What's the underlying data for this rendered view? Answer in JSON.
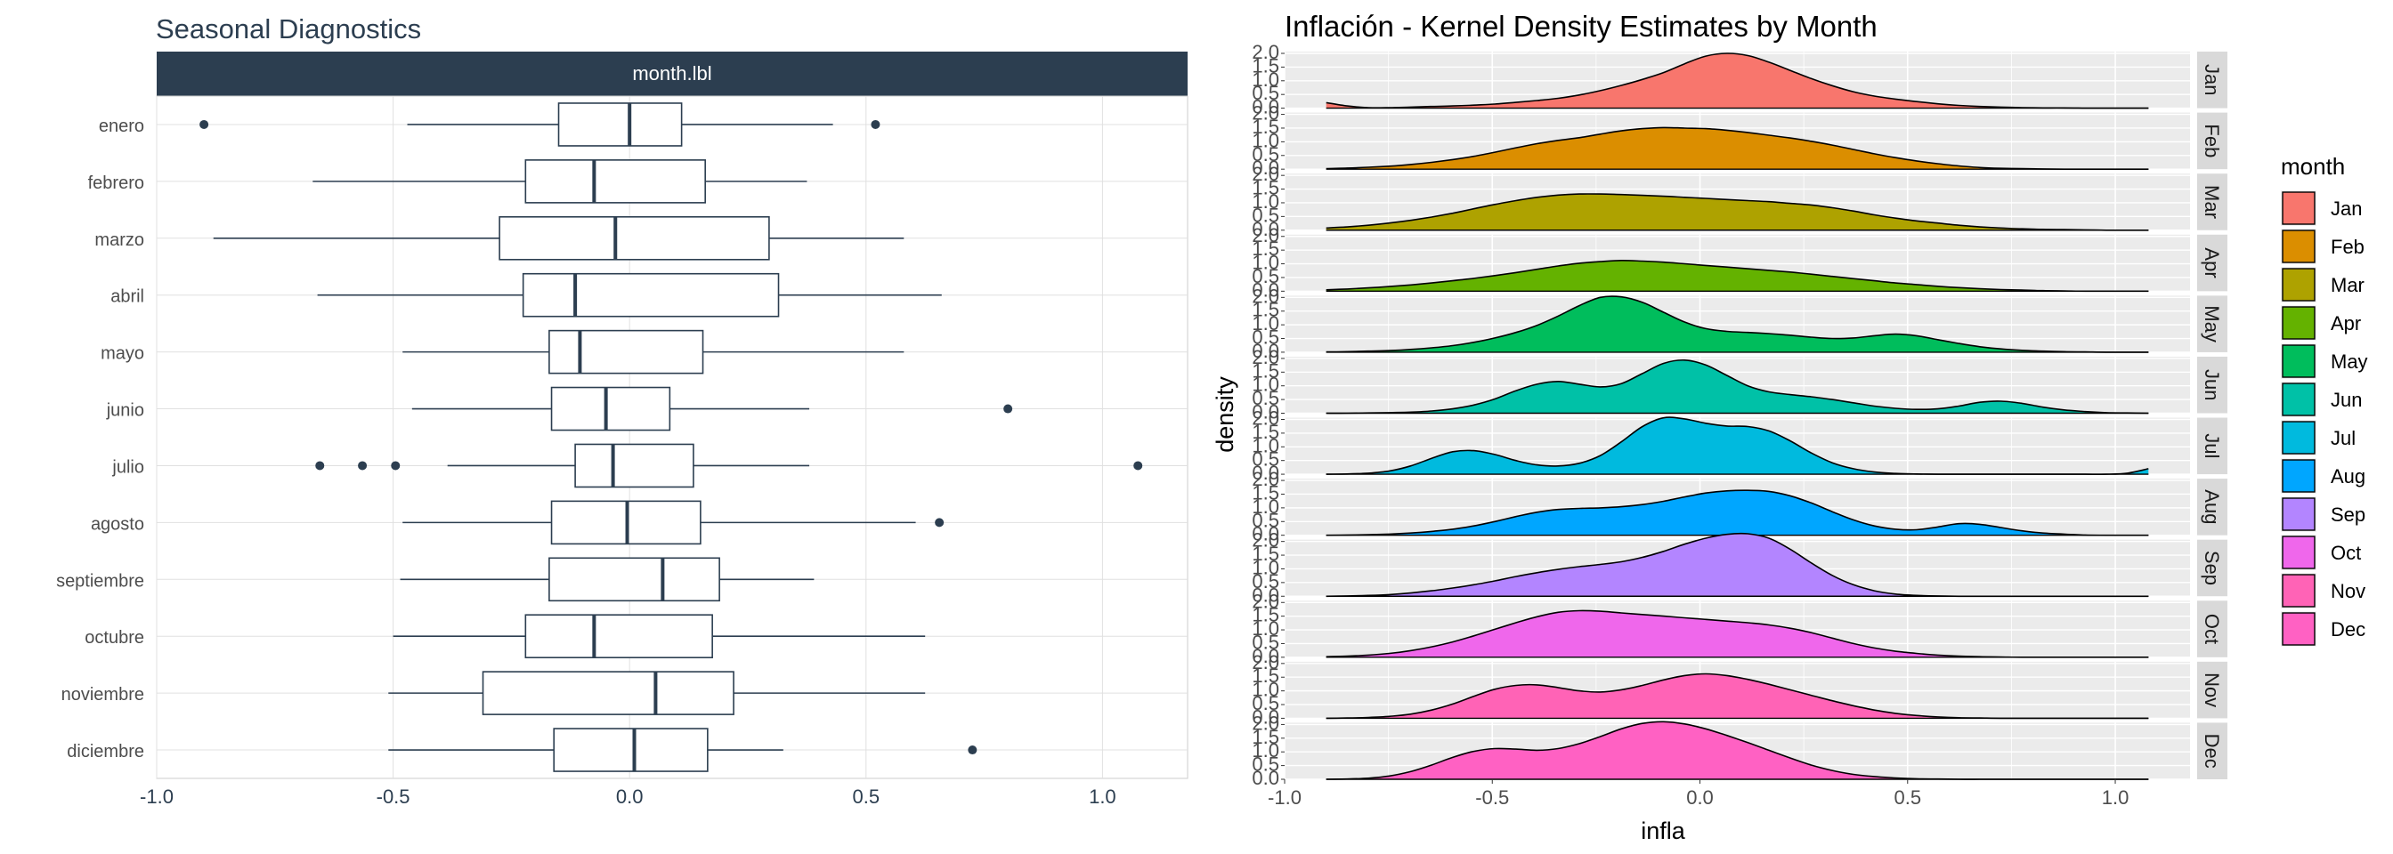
{
  "chart_data": [
    {
      "type": "boxplot",
      "title": "Seasonal Diagnostics",
      "facet_label": "month.lbl",
      "xlim": [
        -1.0,
        1.18
      ],
      "x_ticks": [
        -1.0,
        -0.5,
        0.0,
        0.5,
        1.0
      ],
      "x_tick_labels": [
        "-1.0",
        "-0.5",
        "0.0",
        "0.5",
        "1.0"
      ],
      "grid": true,
      "color": "#2c3e50",
      "categories": [
        "enero",
        "febrero",
        "marzo",
        "abril",
        "mayo",
        "junio",
        "julio",
        "agosto",
        "septiembre",
        "octubre",
        "noviembre",
        "diciembre"
      ],
      "boxes": [
        {
          "min": -0.47,
          "q1": -0.15,
          "median": 0.0,
          "q3": 0.11,
          "max": 0.43,
          "outliers": [
            -0.9,
            0.52
          ]
        },
        {
          "min": -0.67,
          "q1": -0.22,
          "median": -0.075,
          "q3": 0.16,
          "max": 0.375,
          "outliers": []
        },
        {
          "min": -0.88,
          "q1": -0.275,
          "median": -0.03,
          "q3": 0.295,
          "max": 0.58,
          "outliers": []
        },
        {
          "min": -0.66,
          "q1": -0.225,
          "median": -0.115,
          "q3": 0.315,
          "max": 0.66,
          "outliers": []
        },
        {
          "min": -0.48,
          "q1": -0.17,
          "median": -0.105,
          "q3": 0.155,
          "max": 0.58,
          "outliers": []
        },
        {
          "min": -0.46,
          "q1": -0.165,
          "median": -0.05,
          "q3": 0.085,
          "max": 0.38,
          "outliers": [
            0.8
          ]
        },
        {
          "min": -0.385,
          "q1": -0.115,
          "median": -0.035,
          "q3": 0.135,
          "max": 0.38,
          "outliers": [
            -0.655,
            -0.565,
            -0.495,
            1.075
          ]
        },
        {
          "min": -0.48,
          "q1": -0.165,
          "median": -0.005,
          "q3": 0.15,
          "max": 0.605,
          "outliers": [
            0.655
          ]
        },
        {
          "min": -0.485,
          "q1": -0.17,
          "median": 0.07,
          "q3": 0.19,
          "max": 0.39,
          "outliers": []
        },
        {
          "min": -0.5,
          "q1": -0.22,
          "median": -0.075,
          "q3": 0.175,
          "max": 0.625,
          "outliers": []
        },
        {
          "min": -0.51,
          "q1": -0.31,
          "median": 0.055,
          "q3": 0.22,
          "max": 0.625,
          "outliers": []
        },
        {
          "min": -0.51,
          "q1": -0.16,
          "median": 0.01,
          "q3": 0.165,
          "max": 0.325,
          "outliers": [
            0.725
          ]
        }
      ]
    },
    {
      "type": "area",
      "title": "Inflación - Kernel Density Estimates by Month",
      "xlabel": "infla",
      "ylabel": "density",
      "xlim": [
        -1.0,
        1.18
      ],
      "ylim": [
        0,
        2.0
      ],
      "x_ticks": [
        -1.0,
        -0.5,
        0.0,
        0.5,
        1.0
      ],
      "x_tick_labels": [
        "-1.0",
        "-0.5",
        "0.0",
        "0.5",
        "1.0"
      ],
      "y_ticks": [
        0.0,
        0.5,
        1.0,
        1.5,
        2.0
      ],
      "y_tick_labels": [
        "0.0",
        "0.5",
        "1.0",
        "1.5",
        "2.0"
      ],
      "legend_title": "month",
      "legend_position": "right",
      "grid": true,
      "x_grid": [
        -0.9,
        -0.68,
        -0.46,
        -0.24,
        -0.02,
        0.2,
        0.42,
        0.64,
        0.86,
        1.08
      ],
      "series": [
        {
          "name": "Jan",
          "color": "#F8766D",
          "values": [
            0.2,
            0.08,
            0.02,
            0.02,
            0.04,
            0.06,
            0.08,
            0.11,
            0.15,
            0.21,
            0.28,
            0.36,
            0.48,
            0.64,
            0.83,
            1.05,
            1.3,
            1.62,
            1.9,
            2.0,
            1.92,
            1.68,
            1.38,
            1.08,
            0.82,
            0.6,
            0.44,
            0.33,
            0.24,
            0.16,
            0.1,
            0.06,
            0.04,
            0.02,
            0.01,
            0.01,
            0.0,
            0.0,
            0.0,
            0.0
          ]
        },
        {
          "name": "Feb",
          "color": "#DB8E00",
          "values": [
            0.02,
            0.04,
            0.07,
            0.11,
            0.17,
            0.25,
            0.35,
            0.47,
            0.62,
            0.78,
            0.93,
            1.05,
            1.15,
            1.28,
            1.4,
            1.48,
            1.52,
            1.5,
            1.48,
            1.42,
            1.34,
            1.24,
            1.14,
            1.02,
            0.88,
            0.72,
            0.56,
            0.42,
            0.3,
            0.2,
            0.12,
            0.06,
            0.03,
            0.02,
            0.01,
            0.0,
            0.0,
            0.0,
            0.0,
            0.0
          ]
        },
        {
          "name": "Mar",
          "color": "#AEA200",
          "values": [
            0.08,
            0.12,
            0.18,
            0.26,
            0.36,
            0.48,
            0.62,
            0.78,
            0.94,
            1.08,
            1.2,
            1.28,
            1.32,
            1.32,
            1.3,
            1.27,
            1.24,
            1.2,
            1.16,
            1.12,
            1.08,
            1.04,
            0.98,
            0.92,
            0.82,
            0.7,
            0.56,
            0.44,
            0.34,
            0.26,
            0.18,
            0.12,
            0.08,
            0.05,
            0.03,
            0.02,
            0.01,
            0.0,
            0.0,
            0.0
          ]
        },
        {
          "name": "Apr",
          "color": "#64B200",
          "values": [
            0.05,
            0.08,
            0.12,
            0.17,
            0.23,
            0.3,
            0.38,
            0.47,
            0.57,
            0.68,
            0.8,
            0.92,
            1.02,
            1.08,
            1.12,
            1.1,
            1.06,
            1.0,
            0.94,
            0.88,
            0.82,
            0.76,
            0.7,
            0.62,
            0.54,
            0.46,
            0.38,
            0.3,
            0.24,
            0.18,
            0.13,
            0.09,
            0.06,
            0.04,
            0.02,
            0.01,
            0.0,
            0.0,
            0.0,
            0.0
          ]
        },
        {
          "name": "May",
          "color": "#00BD5C",
          "values": [
            0.01,
            0.02,
            0.04,
            0.06,
            0.1,
            0.16,
            0.24,
            0.36,
            0.52,
            0.72,
            0.98,
            1.32,
            1.7,
            2.0,
            2.02,
            1.82,
            1.46,
            1.1,
            0.86,
            0.76,
            0.72,
            0.68,
            0.62,
            0.55,
            0.5,
            0.52,
            0.6,
            0.66,
            0.6,
            0.46,
            0.32,
            0.2,
            0.12,
            0.07,
            0.04,
            0.02,
            0.01,
            0.0,
            0.0,
            0.0
          ]
        },
        {
          "name": "Jun",
          "color": "#00C1A7",
          "values": [
            0.0,
            0.0,
            0.01,
            0.02,
            0.04,
            0.08,
            0.16,
            0.3,
            0.52,
            0.82,
            1.06,
            1.16,
            1.06,
            0.96,
            1.08,
            1.45,
            1.82,
            1.94,
            1.76,
            1.38,
            1.0,
            0.78,
            0.68,
            0.6,
            0.5,
            0.38,
            0.26,
            0.18,
            0.14,
            0.16,
            0.26,
            0.4,
            0.44,
            0.36,
            0.22,
            0.12,
            0.06,
            0.02,
            0.01,
            0.0
          ]
        },
        {
          "name": "Jul",
          "color": "#00BADE",
          "values": [
            0.0,
            0.01,
            0.04,
            0.12,
            0.3,
            0.58,
            0.82,
            0.86,
            0.72,
            0.5,
            0.34,
            0.3,
            0.4,
            0.68,
            1.18,
            1.74,
            2.06,
            2.02,
            1.86,
            1.76,
            1.74,
            1.58,
            1.22,
            0.78,
            0.42,
            0.2,
            0.08,
            0.03,
            0.01,
            0.0,
            0.0,
            0.0,
            0.0,
            0.0,
            0.0,
            0.0,
            0.0,
            0.0,
            0.04,
            0.2
          ]
        },
        {
          "name": "Aug",
          "color": "#00A6FF",
          "values": [
            0.0,
            0.01,
            0.02,
            0.04,
            0.08,
            0.14,
            0.22,
            0.34,
            0.5,
            0.68,
            0.84,
            0.94,
            0.98,
            1.0,
            1.04,
            1.12,
            1.24,
            1.4,
            1.54,
            1.62,
            1.64,
            1.6,
            1.44,
            1.18,
            0.86,
            0.56,
            0.34,
            0.22,
            0.2,
            0.3,
            0.42,
            0.4,
            0.28,
            0.16,
            0.08,
            0.04,
            0.01,
            0.0,
            0.0,
            0.0
          ]
        },
        {
          "name": "Sep",
          "color": "#B385FF",
          "values": [
            0.0,
            0.01,
            0.03,
            0.06,
            0.12,
            0.2,
            0.3,
            0.42,
            0.56,
            0.72,
            0.86,
            0.98,
            1.08,
            1.16,
            1.26,
            1.42,
            1.64,
            1.9,
            2.12,
            2.26,
            2.28,
            2.12,
            1.72,
            1.22,
            0.76,
            0.42,
            0.2,
            0.08,
            0.03,
            0.01,
            0.0,
            0.0,
            0.0,
            0.0,
            0.0,
            0.0,
            0.0,
            0.0,
            0.0,
            0.0
          ]
        },
        {
          "name": "Oct",
          "color": "#EF67EB",
          "values": [
            0.02,
            0.04,
            0.08,
            0.14,
            0.24,
            0.38,
            0.56,
            0.78,
            1.02,
            1.26,
            1.48,
            1.64,
            1.7,
            1.68,
            1.62,
            1.56,
            1.5,
            1.44,
            1.38,
            1.32,
            1.26,
            1.18,
            1.06,
            0.9,
            0.7,
            0.5,
            0.34,
            0.22,
            0.14,
            0.08,
            0.04,
            0.02,
            0.01,
            0.0,
            0.0,
            0.0,
            0.0,
            0.0,
            0.0,
            0.0
          ]
        },
        {
          "name": "Nov",
          "color": "#FF63B6",
          "values": [
            0.0,
            0.01,
            0.03,
            0.07,
            0.15,
            0.3,
            0.52,
            0.8,
            1.06,
            1.2,
            1.22,
            1.12,
            1.0,
            0.96,
            1.04,
            1.2,
            1.4,
            1.56,
            1.62,
            1.56,
            1.42,
            1.24,
            1.04,
            0.84,
            0.64,
            0.46,
            0.3,
            0.18,
            0.1,
            0.05,
            0.02,
            0.01,
            0.0,
            0.0,
            0.0,
            0.0,
            0.0,
            0.0,
            0.0,
            0.0
          ]
        },
        {
          "name": "Dec",
          "color": "#FF61C3",
          "values": [
            0.0,
            0.01,
            0.04,
            0.12,
            0.28,
            0.52,
            0.8,
            1.02,
            1.12,
            1.1,
            1.06,
            1.12,
            1.3,
            1.56,
            1.84,
            2.04,
            2.1,
            2.02,
            1.84,
            1.6,
            1.34,
            1.06,
            0.78,
            0.52,
            0.32,
            0.18,
            0.1,
            0.05,
            0.02,
            0.01,
            0.0,
            0.0,
            0.0,
            0.0,
            0.0,
            0.0,
            0.0,
            0.0,
            0.0,
            0.0
          ]
        }
      ]
    }
  ]
}
